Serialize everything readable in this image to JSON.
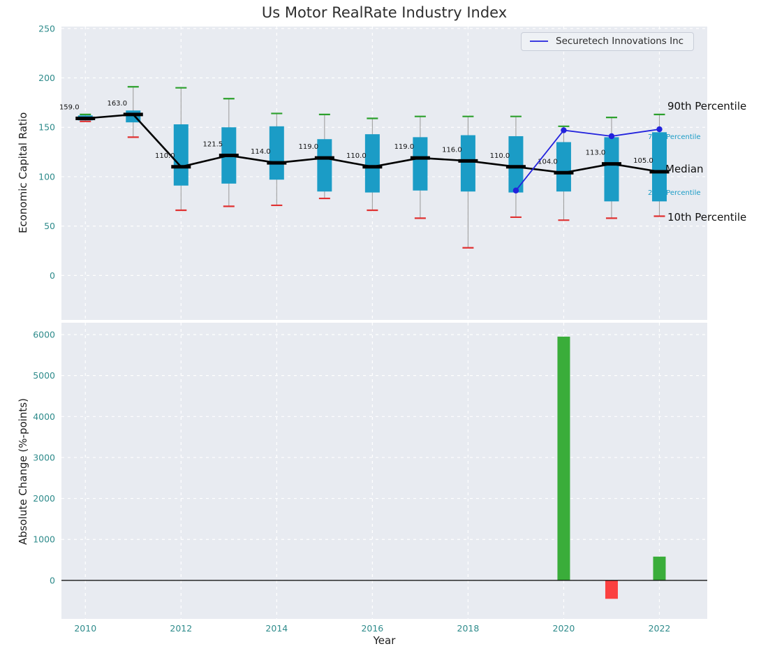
{
  "title": "Us Motor RealRate Industry Index",
  "legend": {
    "label": "Securetech Innovations Inc",
    "loc": "upper right"
  },
  "annotations": {
    "p90": "90th Percentile",
    "p75": "75th Percentile",
    "median": "Median",
    "p25": "25th Percentile",
    "p10": "10th Percentile"
  },
  "colors": {
    "box": "#1b9cc6",
    "p90_cap": "#2ca02c",
    "p10_cap": "#e03131",
    "median": "#000000",
    "company_line": "#2222dd",
    "bar_positive": "#3aad3a",
    "bar_negative": "#fb4040",
    "plot_bg": "#e8ebf1",
    "grid": "#ffffff",
    "tick": "#2e8b8b",
    "whisker": "#a0a0a0"
  },
  "chart_data": [
    {
      "type": "boxplot",
      "title": "Us Motor RealRate Industry Index",
      "ylabel": "Economic Capital Ratio",
      "ylim": [
        -45,
        252
      ],
      "yticks": [
        0,
        50,
        100,
        150,
        200,
        250
      ],
      "xlim": [
        2009.5,
        2023
      ],
      "xticks": [
        2010,
        2012,
        2014,
        2016,
        2018,
        2020,
        2022
      ],
      "grid": true,
      "years": [
        2010,
        2011,
        2012,
        2013,
        2014,
        2015,
        2016,
        2017,
        2018,
        2019,
        2020,
        2021,
        2022
      ],
      "median": [
        159,
        163,
        110,
        121.5,
        114,
        119,
        110,
        119,
        116,
        110,
        104,
        113,
        105
      ],
      "median_labels": [
        "159.0",
        "163.0",
        "110.0",
        "121.5",
        "114.0",
        "119.0",
        "110.0",
        "119.0",
        "116.0",
        "110.0",
        "104.0",
        "113.0",
        "105.0"
      ],
      "q1": [
        157,
        155,
        91,
        93,
        97,
        85,
        84,
        86,
        85,
        84,
        85,
        75,
        75
      ],
      "q3": [
        162,
        167,
        153,
        150,
        151,
        138,
        143,
        140,
        142,
        141,
        135,
        140,
        145
      ],
      "p10": [
        156,
        140,
        66,
        70,
        71,
        78,
        66,
        58,
        28,
        59,
        56,
        58,
        60
      ],
      "p90": [
        163,
        191,
        190,
        179,
        164,
        163,
        159,
        161,
        161,
        161,
        151,
        160,
        163
      ],
      "series": [
        {
          "name": "Securetech Innovations Inc",
          "x": [
            2019,
            2020,
            2021,
            2022
          ],
          "y": [
            86,
            147,
            141,
            148
          ]
        }
      ]
    },
    {
      "type": "bar",
      "ylabel": "Absolute Change (%-points)",
      "xlabel": "Year",
      "ylim": [
        -940,
        6290
      ],
      "yticks": [
        0,
        1000,
        2000,
        3000,
        4000,
        5000,
        6000
      ],
      "xlim": [
        2009.5,
        2023
      ],
      "xticks": [
        2010,
        2012,
        2014,
        2016,
        2018,
        2020,
        2022
      ],
      "grid": true,
      "years": [
        2010,
        2011,
        2012,
        2013,
        2014,
        2015,
        2016,
        2017,
        2018,
        2019,
        2020,
        2021,
        2022
      ],
      "values": [
        0,
        0,
        0,
        0,
        0,
        0,
        0,
        0,
        0,
        0,
        5950,
        -450,
        580
      ]
    }
  ]
}
